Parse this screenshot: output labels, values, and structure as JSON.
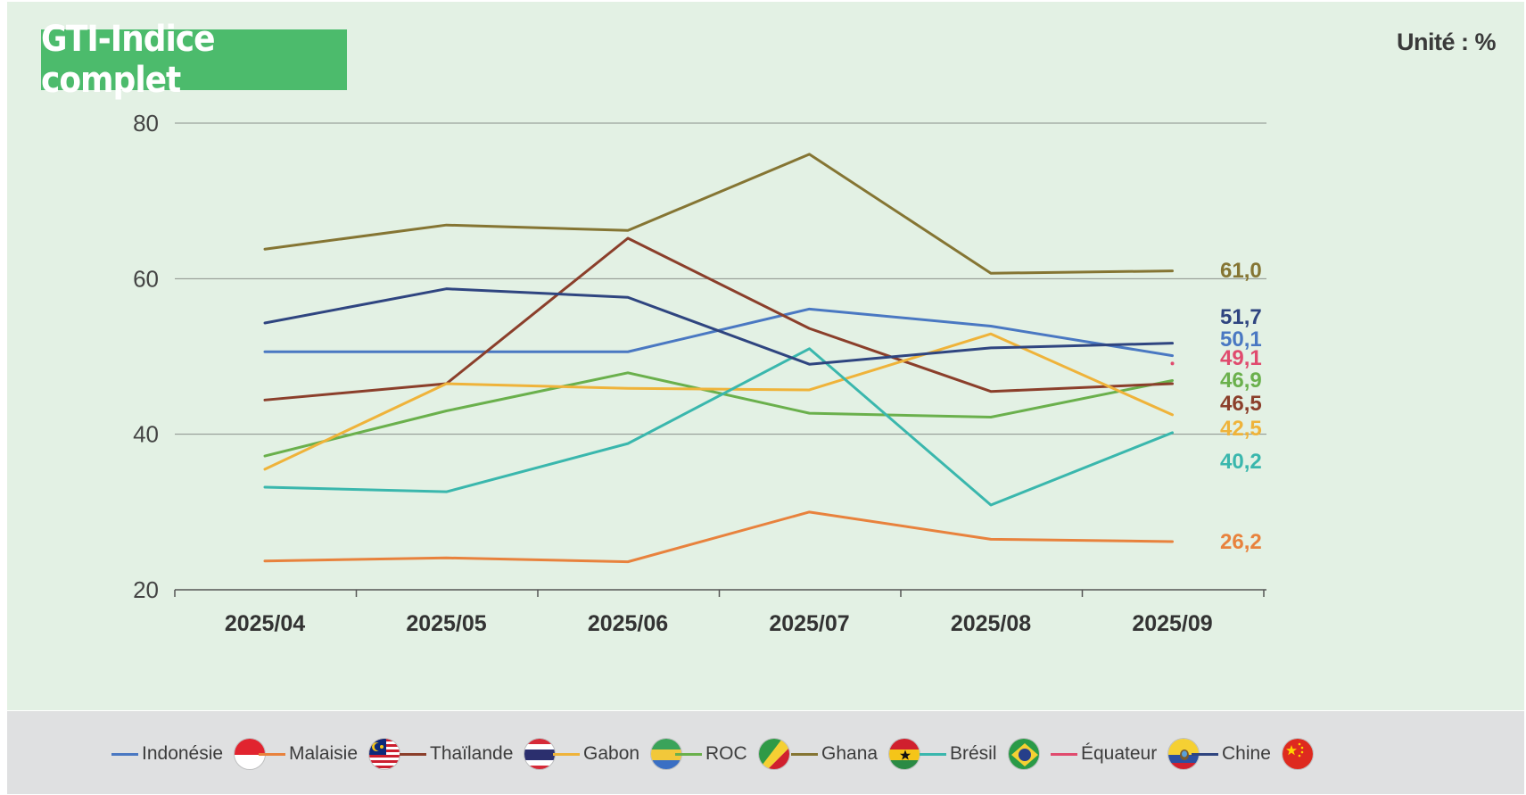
{
  "title": "GTI-Indice complet",
  "unit": "Unité : %",
  "chart_data": {
    "type": "line",
    "title": "GTI-Indice complet",
    "xlabel": "",
    "ylabel": "",
    "unit": "Unité : %",
    "categories": [
      "2025/04",
      "2025/05",
      "2025/06",
      "2025/07",
      "2025/08",
      "2025/09"
    ],
    "y_ticks": [
      "20",
      "40",
      "60",
      "80"
    ],
    "ylim": [
      20,
      80
    ],
    "grid": true,
    "series": [
      {
        "name": "Ghana",
        "color": "#857533",
        "values": [
          63.8,
          66.9,
          66.2,
          76.0,
          60.7,
          61.0
        ],
        "end_label": "61,0",
        "flag": "ghana"
      },
      {
        "name": "Chine",
        "color": "#2f4580",
        "values": [
          54.3,
          58.7,
          57.6,
          49.0,
          51.1,
          51.7
        ],
        "end_label": "51,7",
        "flag": "china"
      },
      {
        "name": "Indonésie",
        "color": "#4a78c2",
        "values": [
          50.6,
          50.6,
          50.6,
          56.1,
          53.9,
          50.1
        ],
        "end_label": "50,1",
        "flag": "indonesia"
      },
      {
        "name": "Équateur",
        "color": "#e04b6e",
        "values": [
          null,
          null,
          null,
          null,
          null,
          49.1
        ],
        "end_label": "49,1",
        "flag": "ecuador"
      },
      {
        "name": "ROC",
        "color": "#6ab04c",
        "values": [
          37.2,
          43.0,
          47.9,
          42.7,
          42.2,
          46.9
        ],
        "end_label": "46,9",
        "flag": "congo"
      },
      {
        "name": "Thaïlande",
        "color": "#8b3f2b",
        "values": [
          44.4,
          46.5,
          65.2,
          53.6,
          45.5,
          46.5
        ],
        "end_label": "46,5",
        "flag": "thailand"
      },
      {
        "name": "Gabon",
        "color": "#efb33a",
        "values": [
          35.5,
          46.5,
          45.9,
          45.7,
          52.9,
          42.5
        ],
        "end_label": "42,5",
        "flag": "gabon"
      },
      {
        "name": "Brésil",
        "color": "#3ab7ad",
        "values": [
          33.2,
          32.6,
          38.8,
          51.0,
          30.9,
          40.2
        ],
        "end_label": "40,2",
        "flag": "brazil"
      },
      {
        "name": "Malaisie",
        "color": "#e8823d",
        "values": [
          23.7,
          24.1,
          23.6,
          30.0,
          26.5,
          26.2
        ],
        "end_label": "26,2",
        "flag": "malaysia"
      }
    ]
  },
  "legend": [
    {
      "label": "Indonésie",
      "color": "#4a78c2",
      "flag": "indonesia-flag-icon"
    },
    {
      "label": "Malaisie",
      "color": "#e8823d",
      "flag": "malaysia-flag-icon"
    },
    {
      "label": "Thaïlande",
      "color": "#8b3f2b",
      "flag": "thailand-flag-icon"
    },
    {
      "label": "Gabon",
      "color": "#efb33a",
      "flag": "gabon-flag-icon"
    },
    {
      "label": "ROC",
      "color": "#6ab04c",
      "flag": "congo-flag-icon"
    },
    {
      "label": "Ghana",
      "color": "#857533",
      "flag": "ghana-flag-icon"
    },
    {
      "label": "Brésil",
      "color": "#3ab7ad",
      "flag": "brazil-flag-icon"
    },
    {
      "label": "Équateur",
      "color": "#e04b6e",
      "flag": "ecuador-flag-icon"
    },
    {
      "label": "Chine",
      "color": "#2f4580",
      "flag": "china-flag-icon"
    }
  ]
}
